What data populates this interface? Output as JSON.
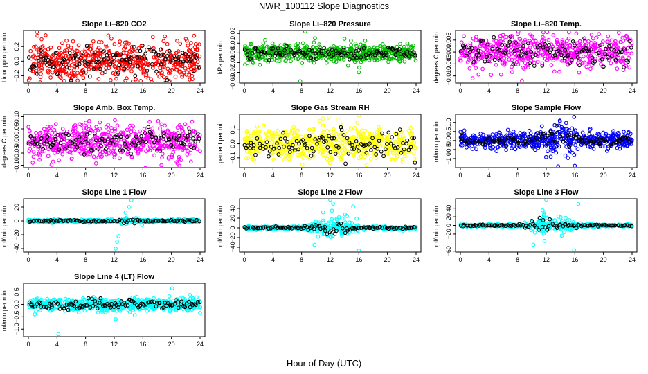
{
  "page": {
    "title": "NWR_100112  Slope Diagnostics",
    "x_axis_title": "Hour of Day (UTC)"
  },
  "colors": {
    "red": "#ff0000",
    "green": "#00bb00",
    "magenta": "#ff00ff",
    "yellow": "#ffff00",
    "blue": "#0000ff",
    "cyan": "#00ffff",
    "black": "#000000"
  },
  "chart_data": [
    {
      "type": "scatter",
      "title": "Slope Li–820 CO2",
      "ylabel": "Licor ppm per min.",
      "color": "red",
      "xlim": [
        0,
        24
      ],
      "xticks": [
        0,
        4,
        8,
        12,
        16,
        20,
        24
      ],
      "ylim": [
        -0.3,
        0.42
      ],
      "yticks": [
        -0.2,
        0.0,
        0.2
      ],
      "ytick_labels": [
        "−0.2",
        "0.0",
        "0.2"
      ],
      "spread": 0.13,
      "black_spread": 0.1,
      "n": 560,
      "nb": 110,
      "outliers": [
        [
          1.2,
          0.4
        ],
        [
          5.0,
          -0.27
        ],
        [
          11.5,
          -0.26
        ],
        [
          15.0,
          -0.25
        ]
      ]
    },
    {
      "type": "scatter",
      "title": "Slope Li–820 Pressure",
      "ylabel": "kPa per min.",
      "color": "green",
      "xlim": [
        0,
        24
      ],
      "xticks": [
        0,
        4,
        8,
        12,
        16,
        20,
        24
      ],
      "ylim": [
        -0.031,
        0.023
      ],
      "yticks": [
        -0.03,
        -0.02,
        -0.01,
        0.0,
        0.01,
        0.02
      ],
      "ytick_labels": [
        "−0.03",
        "−0.02",
        "−0.01",
        "0.00",
        "0.01",
        "0.02"
      ],
      "spread": 0.0045,
      "black_spread": 0.003,
      "n": 560,
      "nb": 110,
      "outliers": [
        [
          0.1,
          -0.012
        ],
        [
          7.8,
          -0.029
        ],
        [
          8.5,
          0.022
        ],
        [
          16.0,
          -0.02
        ],
        [
          14.5,
          -0.013
        ]
      ]
    },
    {
      "type": "scatter",
      "title": "Slope Li–820 Temp.",
      "ylabel": "degrees C per min.",
      "color": "magenta",
      "xlim": [
        0,
        24
      ],
      "xticks": [
        0,
        4,
        8,
        12,
        16,
        20,
        24
      ],
      "ylim": [
        -0.013,
        0.009
      ],
      "yticks": [
        -0.01,
        -0.005,
        0.0,
        0.005
      ],
      "ytick_labels": [
        "−0.010",
        "−0.005",
        "0.000",
        "0.005"
      ],
      "spread": 0.0038,
      "black_spread": 0.003,
      "n": 560,
      "nb": 110,
      "outliers": [
        [
          1.7,
          -0.011
        ],
        [
          7.2,
          0.006
        ],
        [
          8.6,
          -0.012
        ],
        [
          13.0,
          0.007
        ]
      ]
    },
    {
      "type": "scatter",
      "title": "Slope Amb. Box Temp.",
      "ylabel": "degrees C per min.",
      "color": "magenta",
      "xlim": [
        0,
        24
      ],
      "xticks": [
        0,
        4,
        8,
        12,
        16,
        20,
        24
      ],
      "ylim": [
        -0.11,
        0.11
      ],
      "yticks": [
        -0.1,
        -0.05,
        0.0,
        0.05,
        0.1
      ],
      "ytick_labels": [
        "−0.10",
        "−0.05",
        "0.00",
        "0.05",
        "0.10"
      ],
      "spread": 0.035,
      "black_spread": 0.025,
      "n": 560,
      "nb": 110,
      "outliers": [
        [
          0.6,
          -0.09
        ],
        [
          18.6,
          -0.1
        ],
        [
          22.9,
          0.08
        ]
      ]
    },
    {
      "type": "scatter",
      "title": "Slope Gas Stream RH",
      "ylabel": "percent per min.",
      "color": "yellow",
      "xlim": [
        0,
        24
      ],
      "xticks": [
        0,
        4,
        8,
        12,
        16,
        20,
        24
      ],
      "ylim": [
        -0.17,
        0.21
      ],
      "yticks": [
        -0.1,
        0.0,
        0.1
      ],
      "ytick_labels": [
        "−0.1",
        "0.0",
        "0.1"
      ],
      "spread": 0.06,
      "black_spread": 0.05,
      "n": 560,
      "nb": 110,
      "outliers": [
        [
          8.1,
          -0.15
        ],
        [
          11.0,
          0.18
        ],
        [
          16.0,
          0.2
        ]
      ]
    },
    {
      "type": "scatter",
      "title": "Slope Sample Flow",
      "ylabel": "ml/min per min.",
      "color": "blue",
      "xlim": [
        0,
        24
      ],
      "xticks": [
        0,
        4,
        8,
        12,
        16,
        20,
        24
      ],
      "ylim": [
        -1.5,
        1.45
      ],
      "yticks": [
        -1.0,
        -0.5,
        0.0,
        0.5,
        1.0
      ],
      "ytick_labels": [
        "−1.0",
        "−0.5",
        "0.0",
        "0.5",
        "1.0"
      ],
      "spread": 0.22,
      "black_spread": 0.15,
      "n": 560,
      "nb": 110,
      "active": [
        10,
        17
      ],
      "active_boost": 2.6,
      "outliers": [
        [
          16.0,
          -1.4
        ],
        [
          15.9,
          1.3
        ],
        [
          13.9,
          1.1
        ]
      ]
    },
    {
      "type": "scatter",
      "title": "Slope Line 1 Flow",
      "ylabel": "ml/min per min.",
      "color": "cyan",
      "xlim": [
        0,
        24
      ],
      "xticks": [
        0,
        4,
        8,
        12,
        16,
        20,
        24
      ],
      "ylim": [
        -45,
        32
      ],
      "yticks": [
        -40,
        -20,
        0,
        20
      ],
      "ytick_labels": [
        "−40",
        "−20",
        "0",
        "20"
      ],
      "spread": 1.0,
      "black_spread": 0.6,
      "n": 460,
      "nb": 100,
      "active": [
        12,
        16
      ],
      "active_boost": 4,
      "outliers": [
        [
          12.2,
          -40
        ],
        [
          12.4,
          -30
        ],
        [
          12.6,
          -22
        ],
        [
          14.4,
          30
        ],
        [
          14.1,
          20
        ],
        [
          13.6,
          12
        ],
        [
          15.9,
          -6
        ]
      ]
    },
    {
      "type": "scatter",
      "title": "Slope Line 2 Flow",
      "ylabel": "ml/min per min.",
      "color": "cyan",
      "xlim": [
        0,
        24
      ],
      "xticks": [
        0,
        4,
        8,
        12,
        16,
        20,
        24
      ],
      "ylim": [
        -50,
        60
      ],
      "yticks": [
        -40,
        -20,
        0,
        20,
        40
      ],
      "ytick_labels": [
        "−40",
        "−20",
        "0",
        "20",
        "40"
      ],
      "spread": 1.5,
      "black_spread": 1.0,
      "n": 460,
      "nb": 100,
      "active": [
        8,
        17
      ],
      "active_boost": 11,
      "outliers": [
        [
          12.0,
          58
        ],
        [
          12.4,
          50
        ],
        [
          15.2,
          44
        ],
        [
          16.0,
          -47
        ],
        [
          9.8,
          -35
        ],
        [
          11.0,
          32
        ]
      ]
    },
    {
      "type": "scatter",
      "title": "Slope Line 3 Flow",
      "ylabel": "ml/min per min.",
      "color": "cyan",
      "xlim": [
        0,
        24
      ],
      "xticks": [
        0,
        4,
        8,
        12,
        16,
        20,
        24
      ],
      "ylim": [
        -62,
        62
      ],
      "yticks": [
        -60,
        -20,
        0,
        20,
        40
      ],
      "ytick_labels": [
        "−60",
        "−20",
        "0",
        "20",
        "40"
      ],
      "spread": 1.5,
      "black_spread": 1.0,
      "n": 460,
      "nb": 100,
      "active": [
        8,
        17
      ],
      "active_boost": 12,
      "outliers": [
        [
          12.0,
          60
        ],
        [
          16.5,
          50
        ],
        [
          15.9,
          -58
        ],
        [
          10.2,
          -45
        ],
        [
          11.5,
          35
        ]
      ]
    },
    {
      "type": "scatter",
      "title": "Slope Line 4 (LT) Flow",
      "ylabel": "ml/min per min.",
      "color": "cyan",
      "xlim": [
        0,
        24
      ],
      "xticks": [
        0,
        4,
        8,
        12,
        16,
        20,
        24
      ],
      "ylim": [
        -1.3,
        0.85
      ],
      "yticks": [
        -1.0,
        -0.5,
        0.0,
        0.5
      ],
      "ytick_labels": [
        "−1.0",
        "−0.5",
        "0.0",
        "0.5"
      ],
      "spread": 0.13,
      "black_spread": 0.1,
      "n": 560,
      "nb": 110,
      "outliers": [
        [
          4.2,
          -1.2
        ],
        [
          12.2,
          -0.6
        ],
        [
          20.1,
          0.65
        ],
        [
          0.9,
          -0.4
        ],
        [
          24.0,
          -0.35
        ]
      ]
    }
  ]
}
